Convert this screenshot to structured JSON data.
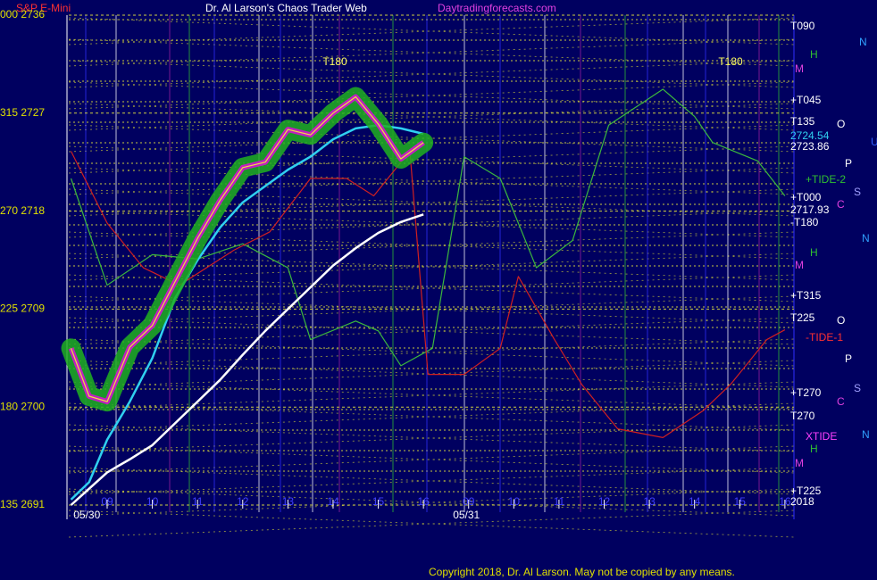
{
  "chart_data": {
    "type": "line",
    "header": {
      "symbol": "S&P E-Mini",
      "title": "Dr. Al Larson's Chaos Trader Web",
      "site": "Daytradingforecasts.com"
    },
    "copyright": "Copyright 2018, Dr. Al Larson. May not be copied by any means.",
    "ylim": [
      2691,
      2736
    ],
    "yticks": [
      {
        "value": 2736,
        "label": "000  2736"
      },
      {
        "value": 2727,
        "label": "315  2727"
      },
      {
        "value": 2718,
        "label": "270  2718"
      },
      {
        "value": 2709,
        "label": "225  2709"
      },
      {
        "value": 2700,
        "label": "180  2700"
      },
      {
        "value": 2691,
        "label": "135  2691"
      }
    ],
    "xlim": [
      -0.85,
      15.2
    ],
    "xticks": [
      {
        "value": 0,
        "label": "09"
      },
      {
        "value": 1,
        "label": "10"
      },
      {
        "value": 2,
        "label": "11"
      },
      {
        "value": 3,
        "label": "12"
      },
      {
        "value": 4,
        "label": "13"
      },
      {
        "value": 5,
        "label": "14"
      },
      {
        "value": 6,
        "label": "15"
      },
      {
        "value": 7,
        "label": "16"
      },
      {
        "value": 8,
        "label": "09"
      },
      {
        "value": 9,
        "label": "10"
      },
      {
        "value": 10,
        "label": "11"
      },
      {
        "value": 11,
        "label": "12"
      },
      {
        "value": 12,
        "label": "13"
      },
      {
        "value": 13,
        "label": "14"
      },
      {
        "value": 14,
        "label": "15"
      },
      {
        "value": 15,
        "label": "16"
      }
    ],
    "date_labels": [
      {
        "value": -0.45,
        "label": "05/30"
      },
      {
        "value": 7.95,
        "label": "05/31"
      }
    ],
    "series": [
      {
        "name": "green",
        "color": "#3cb83c",
        "x": [
          -0.8,
          0,
          1,
          2,
          3,
          4,
          4.5,
          5.5,
          6,
          6.5,
          7.2,
          7.9,
          8.7,
          9.5,
          10.3,
          11.1,
          12.3,
          13,
          13.4,
          14.4,
          15
        ],
        "values": [
          2721,
          2711.2,
          2714,
          2713.6,
          2715,
          2712.8,
          2706.2,
          2707.9,
          2707,
          2703.8,
          2705.4,
          2723,
          2721,
          2712.8,
          2715.3,
          2725.9,
          2729.2,
          2726.7,
          2724.3,
          2722.6,
          2719.4
        ]
      },
      {
        "name": "red",
        "color": "#d02020",
        "x": [
          -0.8,
          0,
          0.8,
          1.6,
          2.8,
          3.6,
          4.5,
          5.3,
          5.9,
          6.7,
          7.1,
          7.9,
          8.7,
          9.1,
          9.9,
          10.5,
          11.3,
          12.3,
          13.2,
          13.8,
          14.6,
          15
        ],
        "values": [
          2723.5,
          2716.9,
          2712.8,
          2711.2,
          2714.4,
          2716.1,
          2721,
          2721,
          2719.4,
          2723.5,
          2703,
          2703,
          2705.4,
          2712,
          2706.2,
          2702.1,
          2698,
          2697.2,
          2699.7,
          2702.1,
          2706.2,
          2707.1
        ]
      },
      {
        "name": "white",
        "color": "#ffffff",
        "x": [
          -0.8,
          -0.4,
          0,
          0.5,
          1,
          1.5,
          2,
          2.5,
          3,
          3.5,
          4,
          4.5,
          5,
          5.5,
          6,
          6.5,
          7
        ],
        "values": [
          2691,
          2692.5,
          2694,
          2695.2,
          2696.5,
          2698.5,
          2700.5,
          2702.5,
          2704.8,
          2707,
          2709,
          2711,
          2713,
          2714.6,
          2716,
          2717,
          2717.7
        ]
      },
      {
        "name": "cyan",
        "color": "#30d0f0",
        "x": [
          -0.8,
          -0.4,
          0,
          0.5,
          1,
          1.5,
          2,
          2.5,
          3,
          3.5,
          4,
          4.5,
          5,
          5.5,
          6,
          6.5,
          7
        ],
        "values": [
          2691.5,
          2693.1,
          2697,
          2700.5,
          2704.5,
          2710,
          2713.5,
          2716.5,
          2718.8,
          2720.3,
          2721.8,
          2723,
          2724.6,
          2725.6,
          2725.9,
          2725.6,
          2725.1
        ]
      },
      {
        "name": "price",
        "color": "#f0e040",
        "x": [
          -0.8,
          -0.4,
          0,
          0.5,
          1,
          1.5,
          2,
          2.5,
          3,
          3.5,
          4,
          4.5,
          5,
          5.5,
          6,
          6.5,
          7
        ],
        "values": [
          2705.4,
          2701,
          2700.5,
          2705.5,
          2707.5,
          2711.5,
          2715.5,
          2719,
          2722,
          2722.5,
          2725.5,
          2725,
          2727,
          2728.5,
          2726,
          2722.8,
          2724.3
        ]
      }
    ],
    "chart_annotations": [
      "T180",
      "T180"
    ],
    "right_labels": [
      "T090",
      "+T045",
      "T135",
      "2724.54",
      "2723.86",
      "+TIDE-2",
      "+T000",
      "2717.93",
      "-T180",
      "+T315",
      "T225",
      "-TIDE-1",
      "+T270",
      "T270",
      "XTIDE",
      "+T225",
      "2018"
    ],
    "side_letters": [
      "N",
      "H",
      "M",
      "O",
      "U",
      "P",
      "S",
      "C",
      "N",
      "H",
      "M",
      "O",
      "P",
      "S",
      "C",
      "N",
      "H",
      "M"
    ]
  }
}
